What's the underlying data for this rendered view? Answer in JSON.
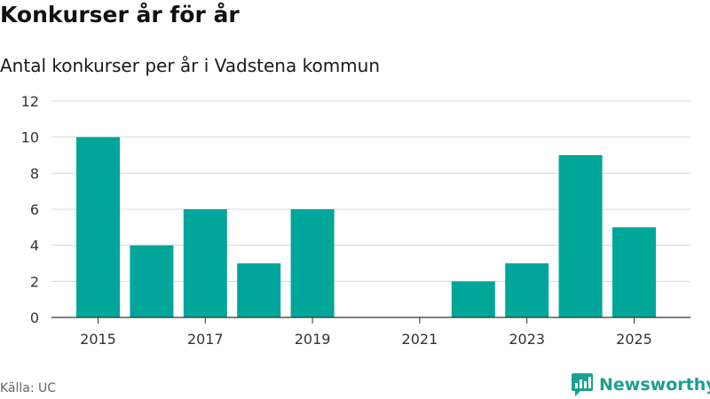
{
  "header": {
    "title": "Konkurser år för år",
    "subtitle": "Antal konkurser per år i Vadstena kommun"
  },
  "footer": {
    "source": "Källa: UC",
    "brand": "Newsworthy",
    "brand_icon": "newsworthy-logo-icon"
  },
  "colors": {
    "bar": "#00a699",
    "grid": "#d9d9d9",
    "axis": "#333333",
    "brand": "#1aa18f"
  },
  "chart_data": {
    "type": "bar",
    "title": "Konkurser år för år",
    "subtitle": "Antal konkurser per år i Vadstena kommun",
    "categories": [
      "2015",
      "2016",
      "2017",
      "2018",
      "2019",
      "2020",
      "2021",
      "2022",
      "2023",
      "2024",
      "2025"
    ],
    "values": [
      10,
      4,
      6,
      3,
      6,
      0,
      0,
      2,
      3,
      9,
      5
    ],
    "x_tick_labels": [
      "2015",
      "2017",
      "2019",
      "2021",
      "2023",
      "2025"
    ],
    "y_ticks": [
      0,
      2,
      4,
      6,
      8,
      10,
      12
    ],
    "ylim": [
      0,
      12
    ],
    "xlabel": "",
    "ylabel": "",
    "grid": true,
    "legend": "none"
  }
}
